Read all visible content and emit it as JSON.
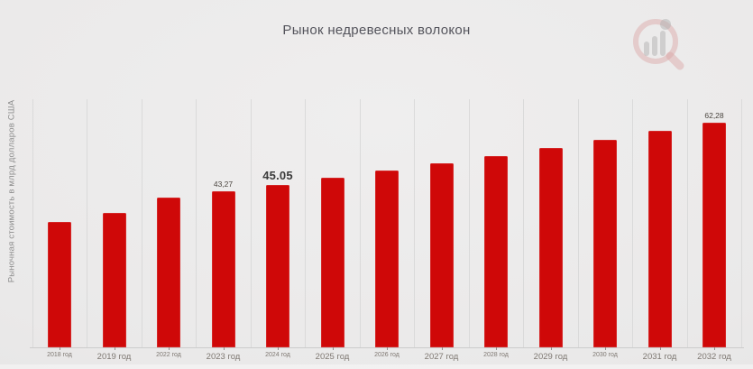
{
  "colors": {
    "bar": "#cf0808",
    "background": "#eae9e9",
    "title_text": "#54545c",
    "axis_text": "#7e7872",
    "grid_line": "#dadada",
    "logo_ring": "#c96a6a",
    "logo_bars": "#8c8c8c"
  },
  "logo": {
    "icon": "magnifier-bar-chart-logo"
  },
  "chart_data": {
    "type": "bar",
    "title": "Рынок недревесных волокон",
    "xlabel": "",
    "ylabel": "Рыночная стоимость в млрд долларов США",
    "categories": [
      "2018 год",
      "2019 год",
      "2022 год",
      "2023 год",
      "2024 год",
      "2025 год",
      "2026 год",
      "2027 год",
      "2028 год",
      "2029 год",
      "2030 год",
      "2031 год",
      "2032 год"
    ],
    "values": [
      34.75,
      37.25,
      41.6,
      43.27,
      45.05,
      46.95,
      48.9,
      51.0,
      53.05,
      55.25,
      57.5,
      60.0,
      62.28
    ],
    "data_labels": [
      {
        "index": 3,
        "text": "43,27",
        "emphasis": false
      },
      {
        "index": 4,
        "text": "45.05",
        "emphasis": true
      },
      {
        "index": 12,
        "text": "62,28",
        "emphasis": false
      }
    ],
    "ylim": [
      0,
      71
    ],
    "grid": "vertical-separators",
    "legend": "none",
    "bar_color": "#cf0808"
  }
}
